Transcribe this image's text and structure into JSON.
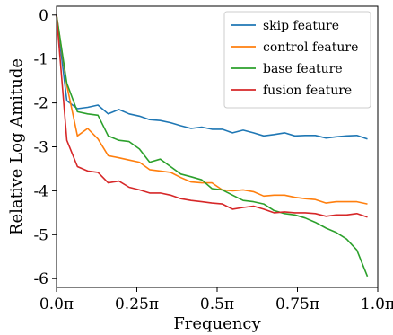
{
  "chart_data": {
    "type": "line",
    "xlabel": "Frequency",
    "ylabel": "Relative Log Amitude",
    "xlim": [
      0,
      1
    ],
    "ylim": [
      -6.2,
      0.2
    ],
    "x_ticks": [
      {
        "value": 0,
        "label": "0.0π"
      },
      {
        "value": 0.25,
        "label": "0.25π"
      },
      {
        "value": 0.5,
        "label": "0.5π"
      },
      {
        "value": 0.75,
        "label": "0.75π"
      },
      {
        "value": 1.0,
        "label": "1.0π"
      }
    ],
    "y_ticks": [
      {
        "value": 0,
        "label": "0"
      },
      {
        "value": -1,
        "label": "-1"
      },
      {
        "value": -2,
        "label": "-2"
      },
      {
        "value": -3,
        "label": "-3"
      },
      {
        "value": -4,
        "label": "-4"
      },
      {
        "value": -5,
        "label": "-5"
      },
      {
        "value": -6,
        "label": "-6"
      }
    ],
    "grid": false,
    "legend_position": "top-right",
    "x": [
      0,
      0.032,
      0.065,
      0.097,
      0.129,
      0.161,
      0.194,
      0.226,
      0.258,
      0.29,
      0.323,
      0.355,
      0.387,
      0.419,
      0.452,
      0.484,
      0.516,
      0.548,
      0.581,
      0.613,
      0.645,
      0.677,
      0.71,
      0.742,
      0.774,
      0.806,
      0.839,
      0.871,
      0.903,
      0.935,
      0.968
    ],
    "series": [
      {
        "name": "skip feature",
        "color": "#1f77b4",
        "values": [
          0,
          -1.95,
          -2.13,
          -2.1,
          -2.05,
          -2.25,
          -2.15,
          -2.25,
          -2.3,
          -2.38,
          -2.4,
          -2.45,
          -2.52,
          -2.58,
          -2.55,
          -2.6,
          -2.6,
          -2.68,
          -2.62,
          -2.68,
          -2.75,
          -2.72,
          -2.68,
          -2.75,
          -2.74,
          -2.74,
          -2.8,
          -2.77,
          -2.75,
          -2.74,
          -2.82
        ]
      },
      {
        "name": "control feature",
        "color": "#ff7f0e",
        "values": [
          0,
          -1.6,
          -2.75,
          -2.58,
          -2.82,
          -3.2,
          -3.25,
          -3.3,
          -3.35,
          -3.52,
          -3.55,
          -3.58,
          -3.7,
          -3.8,
          -3.82,
          -3.82,
          -3.98,
          -4.0,
          -3.98,
          -4.02,
          -4.12,
          -4.1,
          -4.1,
          -4.15,
          -4.18,
          -4.2,
          -4.28,
          -4.25,
          -4.25,
          -4.25,
          -4.3
        ]
      },
      {
        "name": "base feature",
        "color": "#2ca02c",
        "values": [
          0,
          -1.55,
          -2.2,
          -2.25,
          -2.28,
          -2.75,
          -2.85,
          -2.88,
          -3.05,
          -3.35,
          -3.28,
          -3.45,
          -3.62,
          -3.68,
          -3.75,
          -3.95,
          -3.98,
          -4.1,
          -4.22,
          -4.25,
          -4.3,
          -4.45,
          -4.52,
          -4.55,
          -4.62,
          -4.72,
          -4.85,
          -4.95,
          -5.1,
          -5.35,
          -5.95
        ]
      },
      {
        "name": "fusion feature",
        "color": "#d62728",
        "values": [
          0,
          -2.85,
          -3.45,
          -3.55,
          -3.58,
          -3.82,
          -3.78,
          -3.92,
          -3.98,
          -4.05,
          -4.05,
          -4.1,
          -4.18,
          -4.22,
          -4.25,
          -4.28,
          -4.3,
          -4.42,
          -4.38,
          -4.35,
          -4.42,
          -4.5,
          -4.48,
          -4.5,
          -4.5,
          -4.52,
          -4.58,
          -4.55,
          -4.55,
          -4.52,
          -4.6
        ]
      }
    ]
  }
}
